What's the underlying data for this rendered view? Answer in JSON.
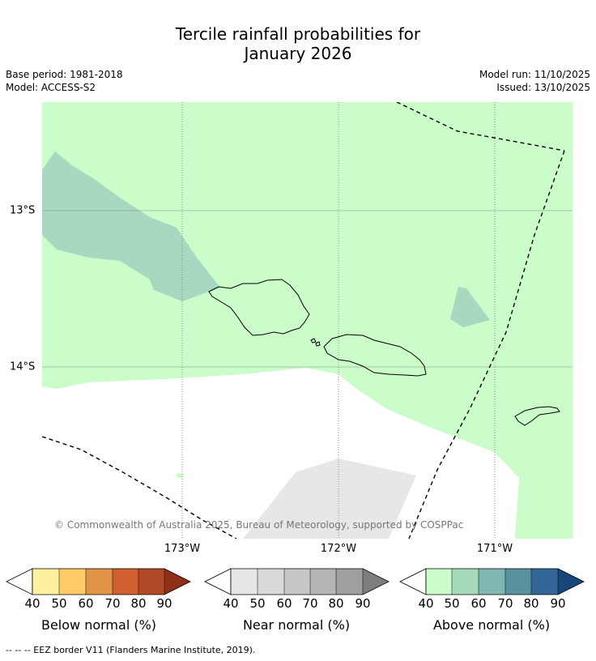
{
  "title_line1": "Tercile rainfall probabilities for",
  "title_line2": "January 2026",
  "base_period": "Base period: 1981-2018",
  "model": "Model: ACCESS-S2",
  "model_run": "Model run: 11/10/2025",
  "issued": "Issued: 13/10/2025",
  "lon_labels": [
    "173°W",
    "172°W",
    "171°W"
  ],
  "lat_labels": [
    "13°S",
    "14°S"
  ],
  "copyright": "© Commonwealth of Australia 2025, Bureau of Meteorology, supported by COSPPac",
  "colorbars": [
    {
      "label": "Below normal (%)",
      "ticks": [
        "40",
        "50",
        "60",
        "70",
        "80",
        "90"
      ],
      "colors": [
        "#fff0a0",
        "#fdcb65",
        "#e09445",
        "#cf5f2e",
        "#b14a28",
        "#8e3019"
      ]
    },
    {
      "label": "Near normal (%)",
      "ticks": [
        "40",
        "50",
        "60",
        "70",
        "80",
        "90"
      ],
      "colors": [
        "#e7e7e7",
        "#d9d9d9",
        "#c7c7c7",
        "#b5b5b5",
        "#9f9f9f",
        "#7e7e7e"
      ]
    },
    {
      "label": "Above normal (%)",
      "ticks": [
        "40",
        "50",
        "60",
        "70",
        "80",
        "90"
      ],
      "colors": [
        "#cbfdcb",
        "#a6dabc",
        "#82b6b0",
        "#5b92a0",
        "#326697",
        "#174679"
      ]
    }
  ],
  "footer": "--  --  -- EEZ border V11 (Flanders Marine Institute, 2019)."
}
